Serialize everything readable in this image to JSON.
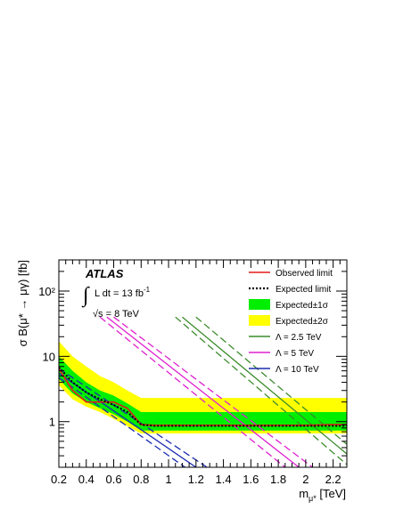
{
  "chart_data": {
    "type": "line",
    "xlabel": "m_{μ*} [TeV]",
    "ylabel": "σ B(μ* → μγ) [fb]",
    "xlim": [
      0.2,
      2.3
    ],
    "ylim": [
      0.2,
      300
    ],
    "yscale": "log",
    "x_ticks": [
      "0.2",
      "0.4",
      "0.6",
      "0.8",
      "1",
      "1.2",
      "1.4",
      "1.6",
      "1.8",
      "2",
      "2.2"
    ],
    "y_ticks": [
      "1",
      "10",
      "10²"
    ],
    "annotations": {
      "experiment": "ATLAS",
      "lumi_prefix": "L dt = 13 fb",
      "lumi_suffix": "-1",
      "energy": "√s = 8 TeV"
    },
    "legend": {
      "position": "top-right",
      "entries": [
        {
          "label": "Observed limit",
          "style": "line",
          "color": "#e41a1c"
        },
        {
          "label": "Expected limit",
          "style": "dotted",
          "color": "#000000"
        },
        {
          "label": "Expected±1σ",
          "style": "box",
          "color": "#00ee00"
        },
        {
          "label": "Expected±2σ",
          "style": "box",
          "color": "#ffff00"
        },
        {
          "label": "Λ = 2.5 TeV",
          "style": "line",
          "color": "#3c8c2c"
        },
        {
          "label": "Λ = 5 TeV",
          "style": "line",
          "color": "#e020d0"
        },
        {
          "label": "Λ = 10 TeV",
          "style": "line",
          "color": "#1c2cb0"
        }
      ]
    },
    "x": [
      0.2,
      0.3,
      0.4,
      0.5,
      0.6,
      0.7,
      0.8,
      0.9,
      1.0,
      1.2,
      1.4,
      1.6,
      1.8,
      2.0,
      2.2,
      2.3
    ],
    "series": [
      {
        "name": "Observed limit",
        "color": "#e41a1c",
        "values": [
          6.5,
          3.0,
          2.0,
          2.0,
          2.0,
          1.6,
          0.9,
          0.88,
          0.88,
          0.88,
          0.88,
          0.88,
          0.88,
          0.88,
          0.9,
          0.9
        ]
      },
      {
        "name": "Expected limit",
        "color": "#000000",
        "values": [
          6.8,
          4.0,
          2.8,
          2.2,
          1.8,
          1.4,
          0.9,
          0.86,
          0.86,
          0.86,
          0.86,
          0.86,
          0.86,
          0.86,
          0.86,
          0.86
        ]
      }
    ],
    "bands": [
      {
        "name": "Expected±2σ",
        "color": "#ffff00",
        "low": [
          3.6,
          2.2,
          1.7,
          1.4,
          1.1,
          0.85,
          0.66,
          0.66,
          0.66,
          0.66,
          0.66,
          0.66,
          0.66,
          0.66,
          0.66,
          0.66
        ],
        "high": [
          17,
          10,
          7,
          5,
          4,
          3,
          2.3,
          2.3,
          2.3,
          2.3,
          2.3,
          2.3,
          2.3,
          2.3,
          2.3,
          2.3
        ]
      },
      {
        "name": "Expected±1σ",
        "color": "#00ee00",
        "low": [
          4.5,
          2.7,
          2.0,
          1.6,
          1.3,
          1.0,
          0.73,
          0.73,
          0.73,
          0.73,
          0.73,
          0.73,
          0.73,
          0.73,
          0.73,
          0.73
        ],
        "high": [
          10,
          6,
          4,
          3,
          2.5,
          1.9,
          1.4,
          1.4,
          1.4,
          1.4,
          1.4,
          1.4,
          1.4,
          1.4,
          1.4,
          1.4
        ]
      }
    ],
    "theory_lines": [
      {
        "name": "Λ = 2.5 TeV",
        "color": "#3c8c2c",
        "center": [
          [
            1.1,
            40
          ],
          [
            2.3,
            0.32
          ]
        ],
        "upper": [
          [
            1.2,
            40
          ],
          [
            2.3,
            0.45
          ]
        ],
        "lower": [
          [
            1.05,
            40
          ],
          [
            2.3,
            0.22
          ]
        ]
      },
      {
        "name": "Λ = 5 TeV",
        "color": "#e020d0",
        "center": [
          [
            0.55,
            40
          ],
          [
            1.95,
            0.2
          ]
        ],
        "upper": [
          [
            0.6,
            40
          ],
          [
            2.05,
            0.2
          ]
        ],
        "lower": [
          [
            0.5,
            40
          ],
          [
            1.85,
            0.2
          ]
        ]
      },
      {
        "name": "Λ = 10 TeV",
        "color": "#1c2cb0",
        "center": [
          [
            0.2,
            5.5
          ],
          [
            1.2,
            0.2
          ]
        ],
        "upper": [
          [
            0.2,
            6.5
          ],
          [
            1.28,
            0.2
          ]
        ],
        "lower": [
          [
            0.2,
            4.7
          ],
          [
            1.12,
            0.2
          ]
        ]
      }
    ]
  }
}
